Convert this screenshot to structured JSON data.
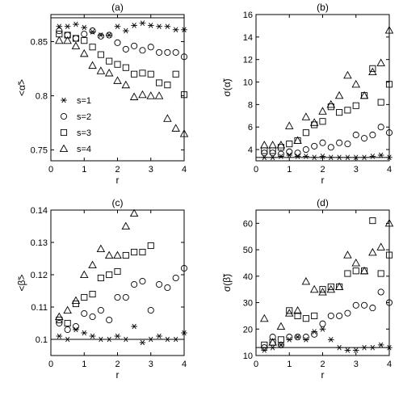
{
  "chart_data": [
    {
      "type": "scatter",
      "panel_label": "(a)",
      "xlabel": "r",
      "ylabel": "<α̃>",
      "xlim": [
        0,
        4
      ],
      "ylim": [
        0.74,
        0.875
      ],
      "xticks": [
        0,
        1,
        2,
        3,
        4
      ],
      "yticks": [
        0.75,
        0.8,
        0.85
      ],
      "ytick_labels": [
        "0.75",
        "0.8",
        "0.85"
      ],
      "reference_line": 0.872,
      "legend": [
        {
          "label": "s=1",
          "marker": "star"
        },
        {
          "label": "s=2",
          "marker": "circle"
        },
        {
          "label": "s=3",
          "marker": "square"
        },
        {
          "label": "s=4",
          "marker": "triangle"
        }
      ],
      "series": [
        {
          "name": "s=1",
          "marker": "star",
          "x": [
            0.25,
            0.5,
            0.75,
            1.0,
            1.25,
            1.5,
            1.75,
            2.0,
            2.25,
            2.5,
            2.75,
            3.0,
            3.25,
            3.5,
            3.75,
            4.0
          ],
          "y": [
            0.864,
            0.864,
            0.866,
            0.863,
            0.859,
            0.856,
            0.856,
            0.864,
            0.86,
            0.865,
            0.867,
            0.865,
            0.864,
            0.864,
            0.861,
            0.861
          ]
        },
        {
          "name": "s=2",
          "marker": "circle",
          "x": [
            0.25,
            0.5,
            0.75,
            1.0,
            1.25,
            1.5,
            1.75,
            2.0,
            2.25,
            2.5,
            2.75,
            3.0,
            3.25,
            3.5,
            3.75,
            4.0
          ],
          "y": [
            0.86,
            0.856,
            0.853,
            0.857,
            0.86,
            0.855,
            0.856,
            0.849,
            0.843,
            0.846,
            0.842,
            0.845,
            0.84,
            0.84,
            0.84,
            0.836
          ]
        },
        {
          "name": "s=3",
          "marker": "square",
          "x": [
            0.25,
            0.5,
            0.75,
            1.0,
            1.25,
            1.5,
            1.75,
            2.0,
            2.25,
            2.5,
            2.75,
            3.0,
            3.25,
            3.5,
            3.75,
            4.0
          ],
          "y": [
            0.857,
            0.856,
            0.853,
            0.851,
            0.845,
            0.838,
            0.832,
            0.829,
            0.826,
            0.82,
            0.821,
            0.82,
            0.812,
            0.81,
            0.82,
            0.801
          ]
        },
        {
          "name": "s=4",
          "marker": "triangle",
          "x": [
            0.25,
            0.5,
            0.75,
            1.0,
            1.25,
            1.5,
            1.75,
            2.0,
            2.25,
            2.5,
            2.75,
            3.0,
            3.25,
            3.5,
            3.75,
            4.0
          ],
          "y": [
            0.851,
            0.851,
            0.846,
            0.839,
            0.828,
            0.823,
            0.821,
            0.814,
            0.81,
            0.799,
            0.801,
            0.8,
            0.8,
            0.779,
            0.77,
            0.765
          ]
        }
      ]
    },
    {
      "type": "scatter",
      "panel_label": "(b)",
      "xlabel": "r",
      "ylabel": "σ(α̃)",
      "xlim": [
        0,
        4
      ],
      "ylim": [
        3,
        16
      ],
      "xticks": [
        0,
        1,
        2,
        3,
        4
      ],
      "yticks": [
        4,
        6,
        8,
        10,
        12,
        14,
        16
      ],
      "ytick_labels": [
        "4",
        "6",
        "8",
        "10",
        "12",
        "14",
        "16"
      ],
      "reference_line": 3.3,
      "series": [
        {
          "name": "s=1",
          "marker": "star",
          "x": [
            0.25,
            0.5,
            0.75,
            1.0,
            1.25,
            1.5,
            1.75,
            2.0,
            2.25,
            2.5,
            2.75,
            3.0,
            3.25,
            3.5,
            3.75,
            4.0
          ],
          "y": [
            3.3,
            3.3,
            3.4,
            3.5,
            3.4,
            3.4,
            3.3,
            3.4,
            3.3,
            3.3,
            3.3,
            3.3,
            3.3,
            3.4,
            3.5,
            3.3
          ]
        },
        {
          "name": "s=2",
          "marker": "circle",
          "x": [
            0.25,
            0.5,
            0.75,
            1.0,
            1.25,
            1.5,
            1.75,
            2.0,
            2.25,
            2.5,
            2.75,
            3.0,
            3.25,
            3.5,
            3.75,
            4.0
          ],
          "y": [
            3.7,
            3.7,
            3.6,
            3.8,
            3.7,
            4.0,
            4.3,
            4.6,
            4.2,
            4.6,
            4.5,
            5.3,
            5.0,
            5.3,
            6.0,
            5.5
          ]
        },
        {
          "name": "s=3",
          "marker": "square",
          "x": [
            0.25,
            0.5,
            0.75,
            1.0,
            1.25,
            1.5,
            1.75,
            2.0,
            2.25,
            2.5,
            2.75,
            3.0,
            3.25,
            3.5,
            3.75,
            4.0
          ],
          "y": [
            3.9,
            3.9,
            4.2,
            4.5,
            4.8,
            5.5,
            6.2,
            6.5,
            7.8,
            7.3,
            7.5,
            7.9,
            8.8,
            11.2,
            8.2,
            9.8
          ]
        },
        {
          "name": "s=4",
          "marker": "triangle",
          "x": [
            0.25,
            0.5,
            0.75,
            1.0,
            1.25,
            1.5,
            1.75,
            2.0,
            2.25,
            2.5,
            2.75,
            3.0,
            3.25,
            3.5,
            3.75,
            4.0
          ],
          "y": [
            4.4,
            4.4,
            4.4,
            6.1,
            4.8,
            6.9,
            6.4,
            7.4,
            8.0,
            8.8,
            10.6,
            9.8,
            8.8,
            10.9,
            11.7,
            14.6
          ]
        }
      ]
    },
    {
      "type": "scatter",
      "panel_label": "(c)",
      "xlabel": "r",
      "ylabel": "<β̃>",
      "xlim": [
        0,
        4
      ],
      "ylim": [
        0.095,
        0.14
      ],
      "xticks": [
        0,
        1,
        2,
        3,
        4
      ],
      "yticks": [
        0.1,
        0.11,
        0.12,
        0.13,
        0.14
      ],
      "ytick_labels": [
        "0.1",
        "0.11",
        "0.12",
        "0.13",
        "0.14"
      ],
      "reference_line": 0.1,
      "series": [
        {
          "name": "s=1",
          "marker": "star",
          "x": [
            0.25,
            0.5,
            0.75,
            1.0,
            1.25,
            1.5,
            1.75,
            2.0,
            2.25,
            2.5,
            2.75,
            3.0,
            3.25,
            3.5,
            3.75,
            4.0
          ],
          "y": [
            0.101,
            0.1,
            0.103,
            0.102,
            0.101,
            0.1,
            0.1,
            0.101,
            0.1,
            0.104,
            0.099,
            0.1,
            0.101,
            0.1,
            0.1,
            0.102
          ]
        },
        {
          "name": "s=2",
          "marker": "circle",
          "x": [
            0.25,
            0.5,
            0.75,
            1.0,
            1.25,
            1.5,
            1.75,
            2.0,
            2.25,
            2.5,
            2.75,
            3.0,
            3.25,
            3.5,
            3.75,
            4.0
          ],
          "y": [
            0.105,
            0.103,
            0.104,
            0.108,
            0.107,
            0.109,
            0.106,
            0.113,
            0.113,
            0.117,
            0.118,
            0.109,
            0.117,
            0.116,
            0.119,
            0.122
          ]
        },
        {
          "name": "s=3",
          "marker": "square",
          "x": [
            0.25,
            0.5,
            0.75,
            1.0,
            1.25,
            1.5,
            1.75,
            2.0,
            2.25,
            2.5,
            2.75,
            3.0,
            3.25,
            3.5,
            3.75,
            4.0
          ],
          "y": [
            0.106,
            0.105,
            0.111,
            0.113,
            0.114,
            0.119,
            0.12,
            0.121,
            0.126,
            0.127,
            0.127,
            0.129,
            null,
            null,
            null,
            null
          ]
        },
        {
          "name": "s=4",
          "marker": "triangle",
          "x": [
            0.25,
            0.5,
            0.75,
            1.0,
            1.25,
            1.5,
            1.75,
            2.0,
            2.25,
            2.5
          ],
          "y": [
            0.107,
            0.109,
            0.112,
            0.12,
            0.123,
            0.128,
            0.126,
            0.126,
            0.135,
            0.139
          ]
        }
      ]
    },
    {
      "type": "scatter",
      "panel_label": "(d)",
      "xlabel": "r",
      "ylabel": "σ(β̃)",
      "xlim": [
        0,
        4
      ],
      "ylim": [
        10,
        65
      ],
      "xticks": [
        0,
        1,
        2,
        3,
        4
      ],
      "yticks": [
        10,
        20,
        30,
        40,
        50,
        60
      ],
      "ytick_labels": [
        "10",
        "20",
        "30",
        "40",
        "50",
        "60"
      ],
      "reference_line": 13,
      "series": [
        {
          "name": "s=1",
          "marker": "star",
          "x": [
            0.25,
            0.5,
            0.75,
            1.0,
            1.25,
            1.5,
            1.75,
            2.0,
            2.25,
            2.5,
            2.75,
            3.0,
            3.25,
            3.5,
            3.75,
            4.0
          ],
          "y": [
            12,
            13,
            14,
            16,
            17,
            16,
            19,
            20,
            16,
            13,
            12,
            12,
            13,
            13,
            14,
            13
          ]
        },
        {
          "name": "s=2",
          "marker": "circle",
          "x": [
            0.25,
            0.5,
            0.75,
            1.0,
            1.25,
            1.5,
            1.75,
            2.0,
            2.25,
            2.5,
            2.75,
            3.0,
            3.25,
            3.5,
            3.75,
            4.0
          ],
          "y": [
            13,
            17,
            14,
            17,
            17,
            17,
            18,
            22,
            25,
            25,
            26,
            29,
            29,
            28,
            34,
            30
          ]
        },
        {
          "name": "s=3",
          "marker": "square",
          "x": [
            0.25,
            0.5,
            0.75,
            1.0,
            1.25,
            1.5,
            1.75,
            2.0,
            2.25,
            2.5,
            2.75,
            3.0,
            3.25,
            3.5,
            3.75,
            4.0
          ],
          "y": [
            14,
            15,
            16,
            27,
            25,
            24,
            25,
            35,
            36,
            36,
            41,
            42,
            42,
            61,
            41,
            48
          ]
        },
        {
          "name": "s=4",
          "marker": "triangle",
          "x": [
            0.25,
            0.5,
            0.75,
            1.0,
            1.25,
            1.5,
            1.75,
            2.0,
            2.25,
            2.5,
            2.75,
            3.0,
            3.25,
            3.5,
            3.75,
            4.0
          ],
          "y": [
            24,
            15,
            21,
            26,
            27,
            38,
            35,
            34,
            35,
            36,
            48,
            45,
            42,
            49,
            51,
            60
          ]
        }
      ]
    }
  ]
}
